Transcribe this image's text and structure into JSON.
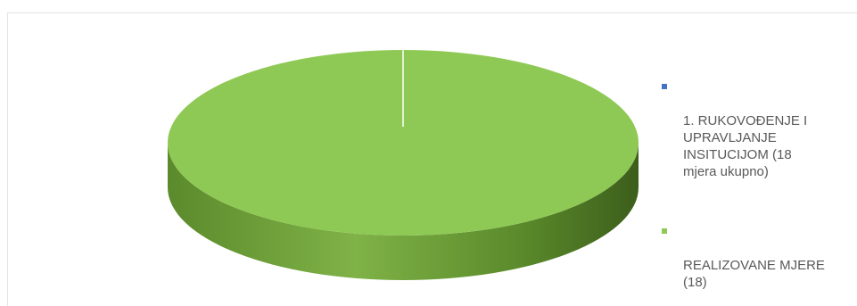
{
  "chart_data": {
    "type": "pie",
    "style": "3d",
    "title": "",
    "categories": [
      "1. RUKOVOĐENJE I UPRAVLJANJE INSITUCIJOM (18 mjera ukupno)",
      "REALIZOVANE MJERE (18)"
    ],
    "values": [
      0,
      18
    ],
    "colors": [
      "#4472c4",
      "#8fc955"
    ],
    "legend_position": "right"
  },
  "legend": {
    "items": [
      {
        "label": "1. RUKOVOĐENJE I\nUPRAVLJANJE\nINSITUCIJOM (18\nmjera ukupno)",
        "color": "#4472c4"
      },
      {
        "label": "REALIZOVANE MJERE\n(18)",
        "color": "#8fc955"
      }
    ]
  }
}
